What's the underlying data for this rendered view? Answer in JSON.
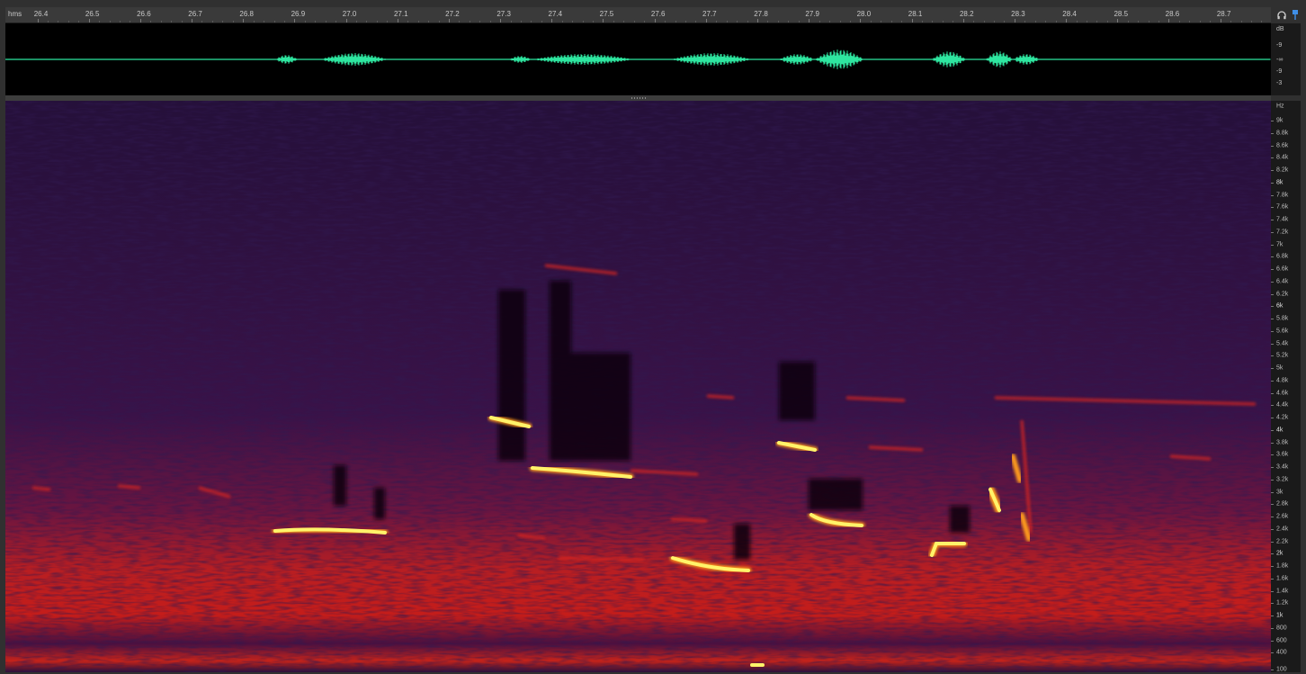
{
  "timeline": {
    "unit_label": "hms",
    "ticks": [
      "26.4",
      "26.5",
      "26.6",
      "26.7",
      "26.8",
      "26.9",
      "27.0",
      "27.1",
      "27.2",
      "27.3",
      "27.4",
      "27.5",
      "27.6",
      "27.7",
      "27.8",
      "27.9",
      "28.0",
      "28.1",
      "28.2",
      "28.3",
      "28.4",
      "28.5",
      "28.6",
      "28.7"
    ]
  },
  "toolbar": {
    "headphones_icon": "headphones-icon",
    "marker_icon": "marker-icon"
  },
  "waveform": {
    "color": "#2ee6a0",
    "db_unit": "dB",
    "db_labels": [
      "-9",
      "-∞",
      "-9",
      "-3"
    ]
  },
  "spectrogram": {
    "hz_unit": "Hz",
    "hz_labels": [
      "9k",
      "8.8k",
      "8.6k",
      "8.4k",
      "8.2k",
      "8k",
      "7.8k",
      "7.6k",
      "7.4k",
      "7.2k",
      "7k",
      "6.8k",
      "6.6k",
      "6.4k",
      "6.2k",
      "6k",
      "5.8k",
      "5.6k",
      "5.4k",
      "5.2k",
      "5k",
      "4.8k",
      "4.6k",
      "4.4k",
      "4.2k",
      "4k",
      "3.8k",
      "3.6k",
      "3.4k",
      "3.2k",
      "3k",
      "2.8k",
      "2.6k",
      "2.4k",
      "2.2k",
      "2k",
      "1.8k",
      "1.6k",
      "1.4k",
      "1.2k",
      "1k",
      "800",
      "600",
      "400",
      "100"
    ],
    "palette": [
      "#1c0b2c",
      "#3b0f4a",
      "#8a1a3c",
      "#e0261b",
      "#ff7a00",
      "#fff36a"
    ]
  }
}
